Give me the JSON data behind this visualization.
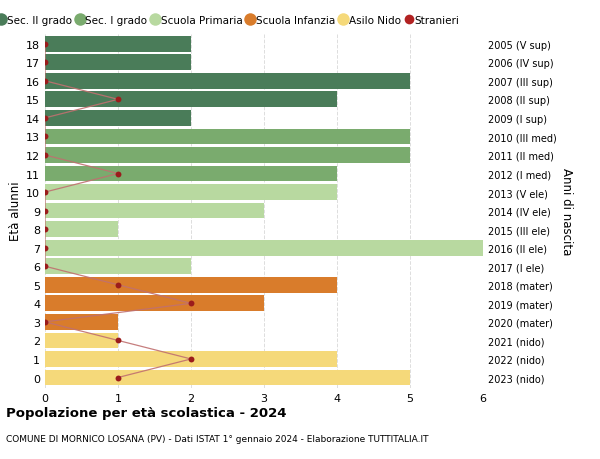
{
  "ages": [
    18,
    17,
    16,
    15,
    14,
    13,
    12,
    11,
    10,
    9,
    8,
    7,
    6,
    5,
    4,
    3,
    2,
    1,
    0
  ],
  "years_labels": [
    "2005 (V sup)",
    "2006 (IV sup)",
    "2007 (III sup)",
    "2008 (II sup)",
    "2009 (I sup)",
    "2010 (III med)",
    "2011 (II med)",
    "2012 (I med)",
    "2013 (V ele)",
    "2014 (IV ele)",
    "2015 (III ele)",
    "2016 (II ele)",
    "2017 (I ele)",
    "2018 (mater)",
    "2019 (mater)",
    "2020 (mater)",
    "2021 (nido)",
    "2022 (nido)",
    "2023 (nido)"
  ],
  "bar_values": [
    2,
    2,
    5,
    4,
    2,
    5,
    5,
    4,
    4,
    3,
    1,
    6,
    2,
    4,
    3,
    1,
    1,
    4,
    5
  ],
  "stranieri_values": [
    0,
    0,
    0,
    1,
    0,
    0,
    0,
    1,
    0,
    0,
    0,
    0,
    0,
    1,
    2,
    0,
    1,
    2,
    1
  ],
  "bar_colors": [
    "#4a7c59",
    "#4a7c59",
    "#4a7c59",
    "#4a7c59",
    "#4a7c59",
    "#7aab6e",
    "#7aab6e",
    "#7aab6e",
    "#b8d9a0",
    "#b8d9a0",
    "#b8d9a0",
    "#b8d9a0",
    "#b8d9a0",
    "#d97c2b",
    "#d97c2b",
    "#d97c2b",
    "#f5d97a",
    "#f5d97a",
    "#f5d97a"
  ],
  "legend_labels": [
    "Sec. II grado",
    "Sec. I grado",
    "Scuola Primaria",
    "Scuola Infanzia",
    "Asilo Nido",
    "Stranieri"
  ],
  "legend_colors": [
    "#4a7c59",
    "#7aab6e",
    "#b8d9a0",
    "#d97c2b",
    "#f5d97a",
    "#b22222"
  ],
  "ylabel_left": "Età alunni",
  "ylabel_right": "Anni di nascita",
  "xlim": [
    0,
    6
  ],
  "title": "Popolazione per età scolastica - 2024",
  "subtitle": "COMUNE DI MORNICO LOSANA (PV) - Dati ISTAT 1° gennaio 2024 - Elaborazione TUTTITALIA.IT",
  "background_color": "#ffffff",
  "grid_color": "#dddddd",
  "bar_height": 0.85,
  "stranieri_color": "#9b1c1c",
  "stranieri_line_color": "#c07070"
}
